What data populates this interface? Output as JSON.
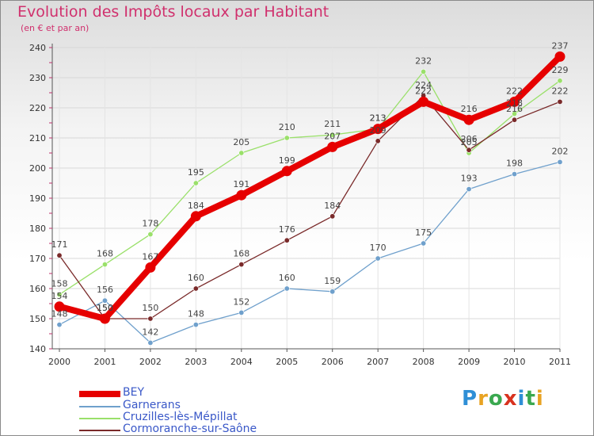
{
  "title": "Evolution des Impôts locaux par Habitant",
  "subtitle": "(en € et par an)",
  "logo": "Proxiti",
  "chart_data": {
    "type": "line",
    "title": "Evolution des Impôts locaux par Habitant",
    "ylabel": "(en € et par an)",
    "xlabel": "",
    "ylim": [
      140,
      240
    ],
    "yticks": [
      140,
      150,
      160,
      170,
      180,
      190,
      200,
      210,
      220,
      230,
      240
    ],
    "categories": [
      "2000",
      "2001",
      "2002",
      "2003",
      "2004",
      "2005",
      "2006",
      "2007",
      "2008",
      "2009",
      "2010",
      "2011"
    ],
    "series": [
      {
        "name": "BEY",
        "color": "#e60000",
        "values": [
          154,
          150,
          167,
          184,
          191,
          199,
          207,
          213,
          222,
          216,
          222,
          237
        ]
      },
      {
        "name": "Garnerans",
        "color": "#6fa0cc",
        "values": [
          148,
          156,
          142,
          148,
          152,
          160,
          159,
          170,
          175,
          193,
          198,
          202
        ]
      },
      {
        "name": "Cruzilles-lès-Mépillat",
        "color": "#9ae06a",
        "values": [
          158,
          168,
          178,
          195,
          205,
          210,
          211,
          213,
          232,
          205,
          218,
          229
        ]
      },
      {
        "name": "Cormoranche-sur-Saône",
        "color": "#7a2a2a",
        "values": [
          171,
          150,
          150,
          160,
          168,
          176,
          184,
          209,
          224,
          206,
          216,
          222
        ]
      }
    ]
  }
}
